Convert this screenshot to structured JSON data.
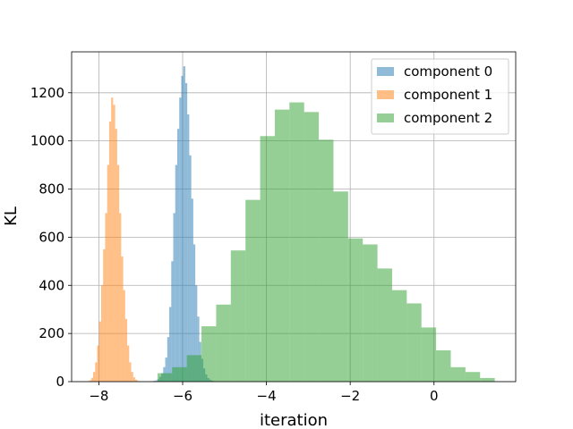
{
  "chart_data": {
    "type": "histogram",
    "xlabel": "iteration",
    "ylabel": "KL",
    "xlim": [
      -8.65,
      1.95
    ],
    "ylim": [
      0,
      1370
    ],
    "xticks": [
      -8,
      -6,
      -4,
      -2,
      0
    ],
    "xtick_labels": [
      "−8",
      "−6",
      "−4",
      "−2",
      "0"
    ],
    "yticks": [
      0,
      200,
      400,
      600,
      800,
      1000,
      1200
    ],
    "grid": true,
    "legend_position": "top-right",
    "series": [
      {
        "name": "component 0",
        "color": "#1f77b4",
        "opacity": 0.5,
        "bin_start": -6.75,
        "bin_width": 0.0478,
        "counts": [
          1,
          3,
          5,
          10,
          20,
          35,
          60,
          100,
          185,
          310,
          500,
          700,
          900,
          1050,
          1180,
          1270,
          1310,
          1240,
          1110,
          940,
          760,
          570,
          400,
          270,
          165,
          95,
          55,
          30,
          15,
          8,
          4,
          2
        ]
      },
      {
        "name": "component 1",
        "color": "#ff7f0e",
        "opacity": 0.5,
        "bin_start": -8.28,
        "bin_width": 0.0478,
        "counts": [
          2,
          5,
          15,
          40,
          80,
          150,
          250,
          400,
          550,
          700,
          900,
          1080,
          1180,
          1150,
          1050,
          900,
          700,
          520,
          380,
          260,
          150,
          80,
          40,
          18,
          8,
          3,
          1
        ]
      },
      {
        "name": "component 2",
        "color": "#2ca02c",
        "opacity": 0.5,
        "bin_start": -6.6,
        "bin_width": 0.35,
        "counts": [
          35,
          60,
          110,
          230,
          320,
          545,
          755,
          1020,
          1130,
          1160,
          1120,
          1005,
          790,
          595,
          570,
          470,
          380,
          325,
          225,
          130,
          60,
          40,
          15
        ]
      }
    ]
  }
}
